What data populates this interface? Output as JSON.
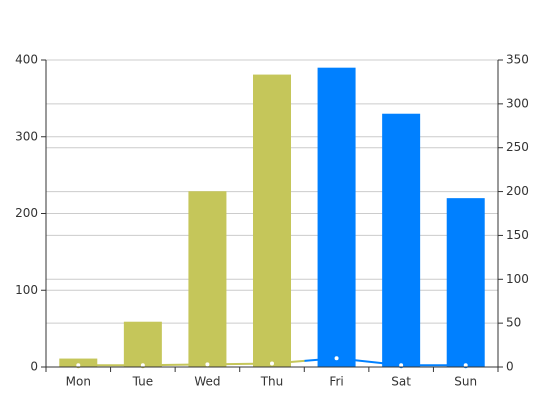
{
  "chart_data": {
    "type": "bar",
    "categories": [
      "Mon",
      "Tue",
      "Wed",
      "Thu",
      "Fri",
      "Sat",
      "Sun"
    ],
    "series": [
      {
        "type": "bar",
        "values": [
          11,
          59,
          229,
          381,
          390,
          330,
          220
        ],
        "colors": [
          "#c5c65a",
          "#c5c65a",
          "#c5c65a",
          "#c5c65a",
          "#0080ff",
          "#0080ff",
          "#0080ff"
        ]
      },
      {
        "type": "line",
        "axis": "y2",
        "values": [
          2,
          2,
          3,
          4,
          10,
          2,
          2
        ],
        "colors": [
          "#c5c65a",
          "#c5c65a",
          "#c5c65a",
          "#c5c65a",
          "#0080ff",
          "#0080ff",
          "#0080ff"
        ]
      }
    ],
    "ylim": [
      0,
      400
    ],
    "yticks": [
      0,
      100,
      200,
      300,
      400
    ],
    "y2lim": [
      0,
      350
    ],
    "y2ticks": [
      0,
      50,
      100,
      150,
      200,
      250,
      300,
      350
    ],
    "grid": true
  }
}
